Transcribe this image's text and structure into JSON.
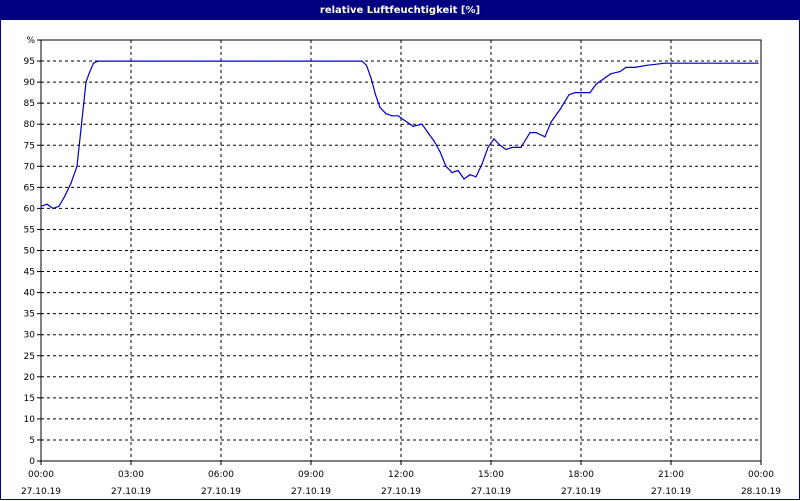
{
  "title": "relative Luftfeuchtigkeit [%]",
  "chart_data": {
    "type": "line",
    "title": "relative Luftfeuchtigkeit [%]",
    "ylabel": "%",
    "xlabel": "",
    "ylim": [
      0,
      100
    ],
    "xlim": [
      0,
      24
    ],
    "y_ticks": [
      "0",
      "5",
      "10",
      "15",
      "20",
      "25",
      "30",
      "35",
      "40",
      "45",
      "50",
      "55",
      "60",
      "65",
      "70",
      "75",
      "80",
      "85",
      "90",
      "95",
      "%"
    ],
    "x_ticks": [
      {
        "time": "00:00",
        "date": "27.10.19"
      },
      {
        "time": "03:00",
        "date": "27.10.19"
      },
      {
        "time": "06:00",
        "date": "27.10.19"
      },
      {
        "time": "09:00",
        "date": "27.10.19"
      },
      {
        "time": "12:00",
        "date": "27.10.19"
      },
      {
        "time": "15:00",
        "date": "27.10.19"
      },
      {
        "time": "18:00",
        "date": "27.10.19"
      },
      {
        "time": "21:00",
        "date": "27.10.19"
      },
      {
        "time": "00:00",
        "date": "28.10.19"
      }
    ],
    "grid": true,
    "line_color": "#0000c0",
    "series": [
      {
        "x": [
          0,
          0.2,
          0.4,
          0.6,
          0.8,
          1.0,
          1.2,
          1.35,
          1.5,
          1.6,
          1.75,
          1.9,
          2.0,
          2.5,
          3,
          4,
          5,
          6,
          7,
          8,
          9,
          10,
          10.7,
          10.85,
          11.0,
          11.15,
          11.3,
          11.5,
          11.7,
          11.9,
          12.1,
          12.4,
          12.7,
          12.9,
          13.1,
          13.3,
          13.5,
          13.7,
          13.9,
          14.1,
          14.3,
          14.5,
          14.7,
          14.9,
          15.1,
          15.3,
          15.5,
          15.7,
          16.0,
          16.3,
          16.5,
          16.8,
          17.0,
          17.3,
          17.6,
          17.8,
          18.1,
          18.3,
          18.5,
          18.8,
          19.0,
          19.3,
          19.5,
          19.8,
          20.2,
          20.8,
          21.5,
          22.5,
          23.3,
          23.9
        ],
        "values": [
          60.5,
          61,
          60,
          60.5,
          63,
          66,
          70,
          80,
          90,
          92,
          94.5,
          95,
          95,
          95,
          95,
          95,
          95,
          95,
          95,
          95,
          95,
          95,
          95,
          94,
          91,
          87,
          84,
          82.5,
          82,
          82,
          81,
          79.5,
          80,
          78,
          76,
          73.5,
          70,
          68.5,
          69,
          67,
          68,
          67.5,
          70.5,
          74.5,
          76.5,
          75,
          74,
          74.5,
          74.5,
          78,
          78,
          77,
          80.5,
          83.5,
          87,
          87.5,
          87.5,
          87.5,
          89.5,
          91,
          92,
          92.5,
          93.5,
          93.5,
          94,
          94.5,
          94.5,
          94.5,
          94.5,
          94.5
        ]
      }
    ]
  }
}
